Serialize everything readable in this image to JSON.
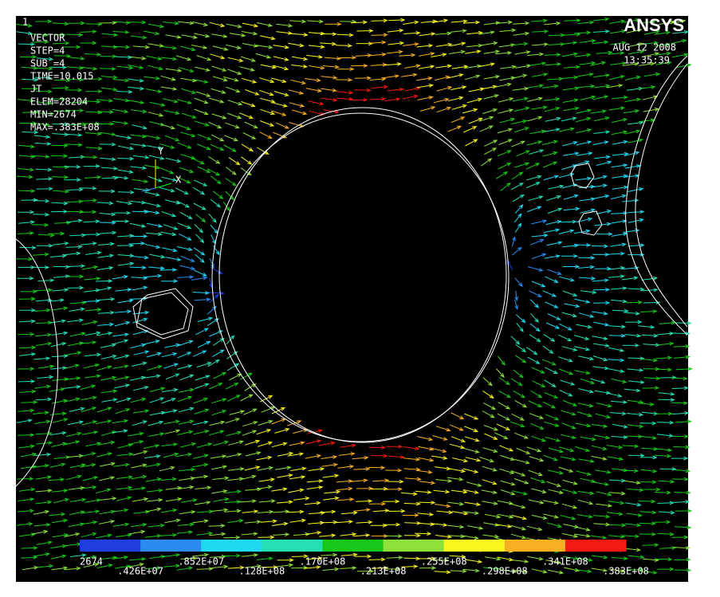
{
  "window_number": "1",
  "logo": "ANSYS",
  "date": "AUG 12 2008",
  "time": "13:35:39",
  "info": [
    "VECTOR",
    "STEP=4",
    "SUB =4",
    "TIME=10.015",
    "JT",
    "ELEM=28204",
    "MIN=2674",
    "MAX=.383E+08"
  ],
  "axes": {
    "y": "Y",
    "x": "X"
  },
  "legend": {
    "colors": [
      "#1e3ee0",
      "#2a8cf0",
      "#20d8f0",
      "#24e0b4",
      "#18c818",
      "#8ee03a",
      "#f8f820",
      "#f8b020",
      "#f01a10"
    ],
    "labels": [
      "2674",
      ".426E+07",
      ".852E+07",
      ".128E+08",
      ".170E+08",
      ".213E+08",
      ".255E+08",
      ".298E+08",
      ".341E+08",
      ".383E+08"
    ]
  }
}
